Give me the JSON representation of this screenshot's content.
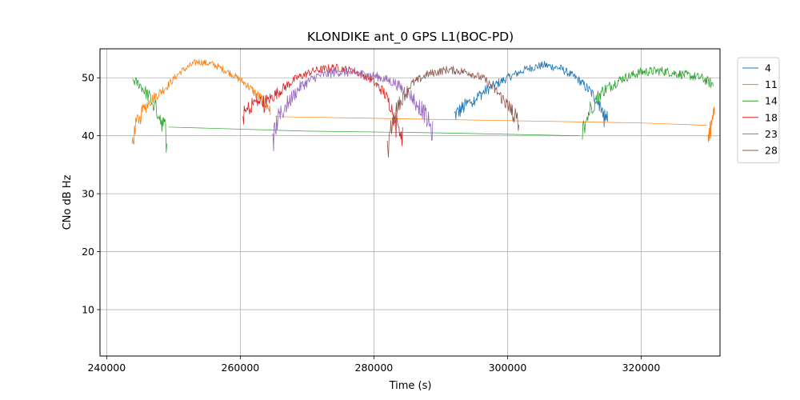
{
  "chart_data": {
    "type": "line",
    "title": "KLONDIKE ant_0 GPS L1(BOC-PD)",
    "xlabel": "Time (s)",
    "ylabel": "CNo dB Hz",
    "xlim": [
      239000,
      331800
    ],
    "ylim": [
      2,
      55
    ],
    "xticks": [
      240000,
      260000,
      280000,
      300000,
      320000
    ],
    "yticks": [
      10,
      20,
      30,
      40,
      50
    ],
    "grid": true,
    "legend_position": "outside-right",
    "series": [
      {
        "name": "4",
        "color": "#1f77b4",
        "noise": 0.7,
        "segments": [
          {
            "x": [
              292000,
              294000,
              297000,
              300000,
              303000,
              305500,
              308000,
              310500,
              312500,
              314000,
              315000
            ],
            "y": [
              43.5,
              45.5,
              48.0,
              50.0,
              51.6,
              52.2,
              51.6,
              49.8,
              47.5,
              45.0,
              42.5
            ]
          }
        ]
      },
      {
        "name": "11",
        "color": "#ff7f0e",
        "noise": 0.6,
        "segments": [
          {
            "x": [
              243800,
              244500,
              245500,
              246500,
              247500,
              249000,
              251000,
              253500,
              256000,
              258500,
              261000,
              263000,
              264500
            ],
            "y": [
              38.5,
              42.5,
              44.5,
              46.0,
              47.0,
              48.5,
              51.0,
              52.8,
              52.3,
              50.8,
              48.8,
              46.5,
              44.5
            ]
          },
          {
            "x": [
              265200,
              280000,
              300000,
              320000,
              329800
            ],
            "y": [
              43.3,
              43.0,
              42.6,
              42.2,
              41.8
            ]
          },
          {
            "x": [
              330000,
              330500,
              331000
            ],
            "y": [
              39.0,
              42.0,
              44.5
            ]
          }
        ]
      },
      {
        "name": "14",
        "color": "#2ca02c",
        "noise": 0.8,
        "segments": [
          {
            "x": [
              243900,
              245000,
              246500,
              247800,
              249000
            ],
            "y": [
              49.6,
              48.8,
              46.5,
              43.8,
              40.5
            ]
          },
          {
            "x": [
              249300,
              270000,
              290000,
              310800
            ],
            "y": [
              41.5,
              40.8,
              40.5,
              40.0
            ]
          },
          {
            "x": [
              311200,
              312300,
              314000,
              317000,
              320000,
              323000,
              326000,
              329000,
              330800
            ],
            "y": [
              40.5,
              44.5,
              47.5,
              49.8,
              51.0,
              51.2,
              50.6,
              50.0,
              48.8
            ]
          }
        ]
      },
      {
        "name": "18",
        "color": "#d62728",
        "noise": 0.7,
        "segments": [
          {
            "x": [
              260400,
              262000,
              264000,
              266000,
              268500,
              271000,
              274000,
              277000,
              279500,
              281500,
              282800,
              283800,
              284300
            ],
            "y": [
              43.5,
              45.8,
              46.0,
              47.8,
              50.0,
              51.2,
              51.8,
              51.2,
              49.8,
              47.5,
              44.5,
              41.5,
              39.5
            ]
          }
        ]
      },
      {
        "name": "23",
        "color": "#9467bd",
        "noise": 0.8,
        "segments": [
          {
            "x": [
              264800,
              265500,
              267000,
              269000,
              271500,
              274500,
              277500,
              280500,
              283000,
              285500,
              287500,
              288800
            ],
            "y": [
              38.5,
              42.5,
              45.5,
              48.5,
              50.3,
              51.0,
              50.8,
              50.2,
              49.2,
              47.0,
              44.0,
              40.5
            ]
          }
        ]
      },
      {
        "name": "28",
        "color": "#8c564b",
        "noise": 0.7,
        "segments": [
          {
            "x": [
              282000,
              282600,
              283500,
              285500,
              288000,
              291000,
              294000,
              296500,
              298500,
              300300,
              301700
            ],
            "y": [
              37.0,
              41.5,
              45.0,
              48.8,
              50.6,
              51.4,
              51.0,
              49.8,
              47.5,
              44.8,
              42.3
            ]
          }
        ]
      }
    ]
  }
}
